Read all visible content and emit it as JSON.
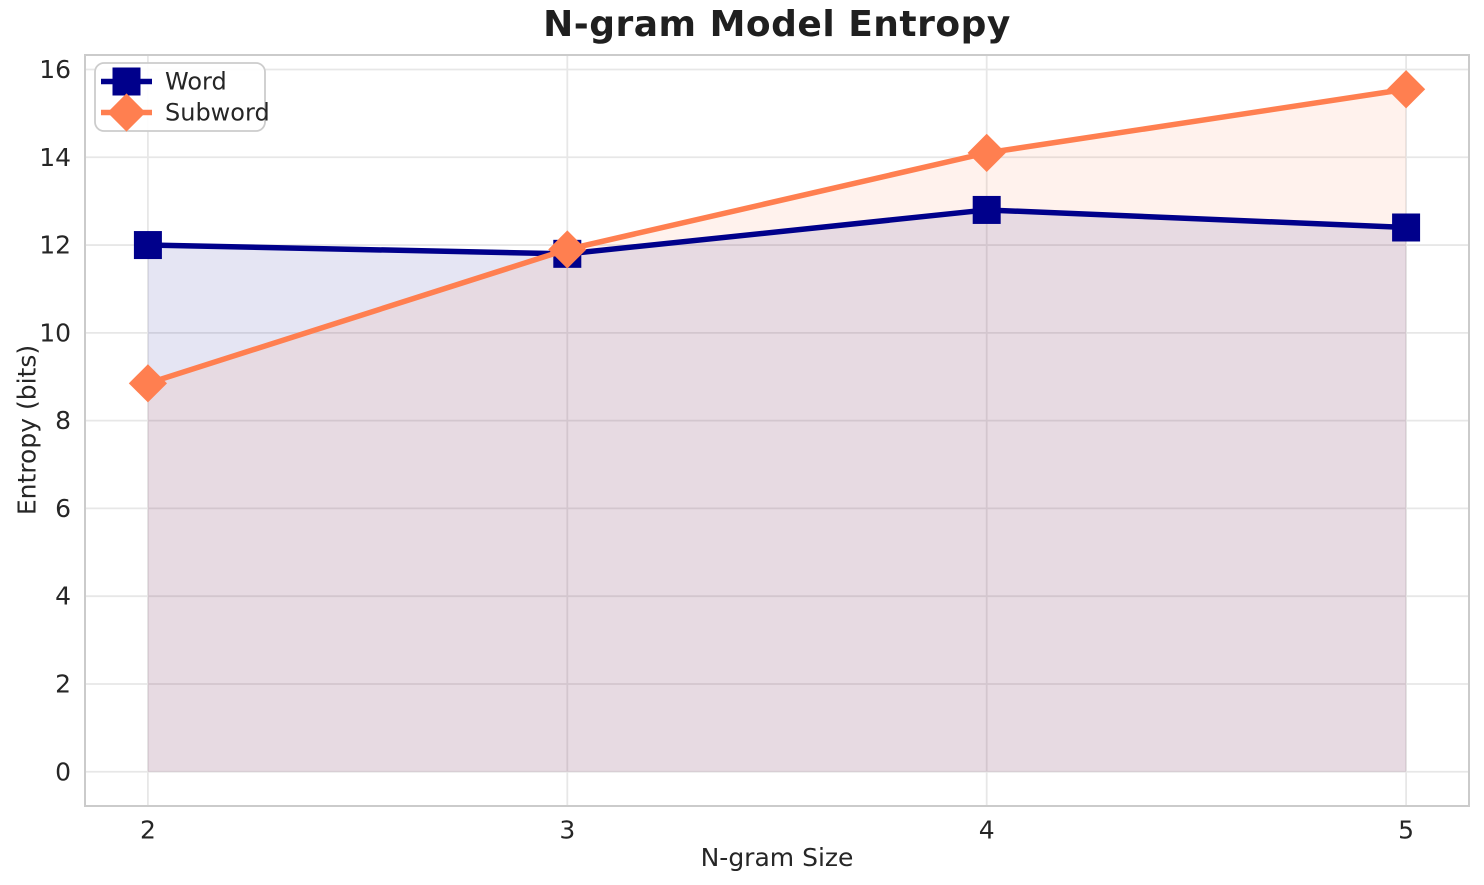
{
  "chart_data": {
    "type": "line",
    "title": "N-gram Model Entropy",
    "xlabel": "N-gram Size",
    "ylabel": "Entropy (bits)",
    "x": [
      2,
      3,
      4,
      5
    ],
    "series": [
      {
        "name": "Word",
        "color": "#00008B",
        "marker": "square",
        "values": [
          12.0,
          11.8,
          12.8,
          12.4
        ]
      },
      {
        "name": "Subword",
        "color": "#FF7F50",
        "marker": "diamond",
        "values": [
          8.85,
          11.9,
          14.1,
          15.55
        ]
      }
    ],
    "fill_alpha": 0.1,
    "fill_baseline": 0,
    "xticks": [
      2,
      3,
      4,
      5
    ],
    "yticks": [
      0,
      2,
      4,
      6,
      8,
      10,
      12,
      14,
      16
    ],
    "xlim": [
      1.85,
      5.15
    ],
    "ylim": [
      -0.78,
      16.33
    ],
    "grid": true,
    "legend": {
      "position": "upper left",
      "entries": [
        "Word",
        "Subword"
      ]
    }
  },
  "style_colors": {
    "grid": "#E7E7E7",
    "spine": "#CBCBCB",
    "tick_text": "#262626",
    "legend_border": "#CCCCCC",
    "background": "#FFFFFF"
  }
}
